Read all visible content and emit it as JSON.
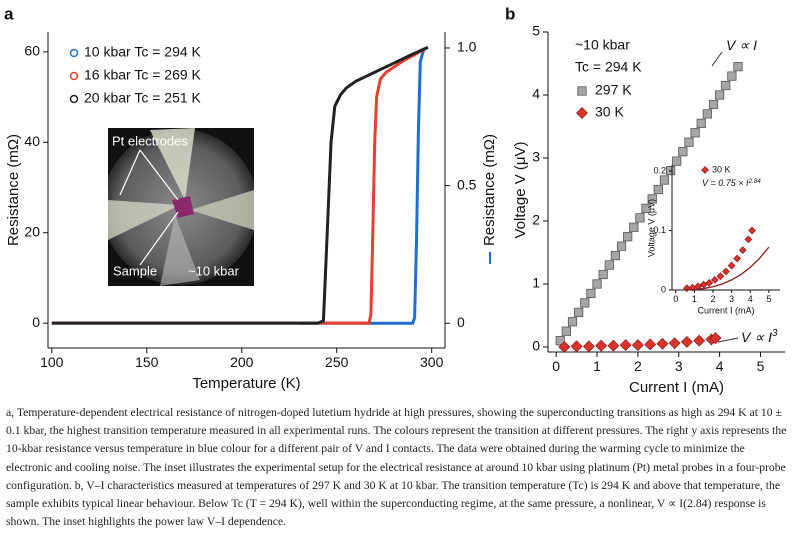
{
  "chart_data": [
    {
      "type": "line",
      "panel": "a",
      "xlabel": "Temperature (K)",
      "ylabel": "Resistance (mΩ)",
      "y2label": "Resistance (mΩ)",
      "xlim": [
        98,
        307
      ],
      "xticks": [
        100,
        150,
        200,
        250,
        300
      ],
      "ylim": [
        -5.5,
        64.4
      ],
      "yticks": [
        0,
        20,
        40,
        60
      ],
      "y2lim": [
        -0.09,
        1.058
      ],
      "y2ticks": [
        0,
        0.5,
        {
          "value": 1.0,
          "label": "1.0"
        }
      ],
      "annotations": [
        "Pt electrodes",
        "Sample",
        "~10 kbar"
      ],
      "series": [
        {
          "name": "10 kbar Tc = 294 K",
          "color": "#1f6fd1",
          "axis": "y2",
          "x": [
            230,
            290,
            291,
            292,
            293,
            294,
            296
          ],
          "values": [
            0,
            0,
            0.02,
            0.3,
            0.7,
            0.95,
            1.0
          ]
        },
        {
          "name": "16 kbar Tc = 269 K",
          "color": "#e8402f",
          "x": [
            100,
            267,
            268,
            269,
            270,
            271,
            273,
            276,
            285,
            298
          ],
          "values": [
            0,
            0,
            2,
            20,
            40,
            50,
            54,
            55.5,
            58,
            61
          ]
        },
        {
          "name": "20 kbar Tc = 251 K",
          "color": "#222222",
          "x": [
            100,
            240,
            243,
            245,
            247,
            249,
            252,
            255,
            260,
            270,
            280,
            290,
            298
          ],
          "values": [
            0,
            0,
            0.5,
            20,
            40,
            48,
            50.5,
            52,
            53.5,
            55.5,
            57.5,
            59.5,
            61
          ]
        }
      ]
    },
    {
      "type": "scatter",
      "panel": "b",
      "xlabel": "Current I (mA)",
      "ylabel": "Voltage V (μV)",
      "legend_title": [
        "~10 kbar",
        "Tc = 294 K"
      ],
      "annotations": [
        {
          "text": "V ∝ I"
        },
        {
          "text": "V ∝ I",
          "sup": "3"
        }
      ],
      "xlim": [
        -0.2,
        5.6
      ],
      "xticks": [
        0,
        1,
        2,
        3,
        4,
        5
      ],
      "ylim": [
        -0.08,
        5.0
      ],
      "yticks": [
        0,
        1,
        2,
        3,
        4,
        5
      ],
      "series": [
        {
          "name": "297 K",
          "color": "#a6a6a6",
          "marker": "square",
          "x": [
            0.1,
            0.25,
            0.4,
            0.55,
            0.7,
            0.85,
            1.0,
            1.15,
            1.3,
            1.45,
            1.6,
            1.75,
            1.9,
            2.05,
            2.2,
            2.35,
            2.5,
            2.65,
            2.8,
            2.95,
            3.1,
            3.25,
            3.4,
            3.55,
            3.7,
            3.85,
            4.0,
            4.15,
            4.3,
            4.45
          ],
          "values": [
            0.1,
            0.25,
            0.4,
            0.55,
            0.7,
            0.85,
            1.0,
            1.15,
            1.3,
            1.45,
            1.6,
            1.75,
            1.9,
            2.05,
            2.2,
            2.35,
            2.5,
            2.65,
            2.8,
            2.95,
            3.1,
            3.25,
            3.4,
            3.55,
            3.7,
            3.85,
            4.0,
            4.15,
            4.3,
            4.45
          ]
        },
        {
          "name": "30 K",
          "color": "#d9342b",
          "marker": "diamond",
          "x": [
            0.2,
            0.5,
            0.8,
            1.1,
            1.4,
            1.7,
            2.0,
            2.3,
            2.6,
            2.9,
            3.2,
            3.5,
            3.8,
            3.9
          ],
          "values": [
            0.0,
            0.01,
            0.01,
            0.02,
            0.02,
            0.03,
            0.03,
            0.04,
            0.05,
            0.06,
            0.08,
            0.1,
            0.12,
            0.14
          ]
        }
      ]
    },
    {
      "type": "scatter",
      "panel": "b-inset",
      "xlabel": "Current I (mA)",
      "ylabel": "Voltage V (μV)",
      "annotations": [
        {
          "text": "V = 0.75 × I",
          "sup": "2.84"
        }
      ],
      "xlim": [
        -0.2,
        5.6
      ],
      "xticks": [
        0,
        1,
        2,
        3,
        4,
        5
      ],
      "ylim": [
        0,
        0.21
      ],
      "yticks": [
        0,
        0.1,
        0.2
      ],
      "series": [
        {
          "name": "30 K",
          "color": "#d9342b",
          "marker": "diamond",
          "x": [
            0.6,
            0.9,
            1.2,
            1.5,
            1.8,
            2.1,
            2.4,
            2.7,
            3.0,
            3.3,
            3.6,
            3.9,
            4.1
          ],
          "values": [
            0.003,
            0.004,
            0.006,
            0.009,
            0.012,
            0.017,
            0.023,
            0.031,
            0.041,
            0.053,
            0.067,
            0.085,
            0.1
          ]
        },
        {
          "color": "#8b1a1a",
          "marker": "line",
          "x": [
            0.5,
            1,
            1.5,
            2,
            2.5,
            3,
            3.5,
            4,
            4.5,
            5
          ],
          "values": [
            0.0001,
            0.0008,
            0.0024,
            0.0054,
            0.01,
            0.017,
            0.026,
            0.038,
            0.053,
            0.072
          ]
        }
      ]
    }
  ],
  "caption": "a, Temperature-dependent electrical resistance of nitrogen-doped lutetium hydride at high pressures, showing the superconducting transitions as high as 294 K at 10 ± 0.1 kbar, the highest transition temperature measured in all experimental runs. The colours represent the transition at different pressures. The right y axis represents the 10-kbar resistance versus temperature in blue colour for a different pair of V and I contacts. The data were obtained during the warming cycle to minimize the electronic and cooling noise. The inset illustrates the experimental setup for the electrical resistance at around 10 kbar using platinum (Pt) metal probes in a four-probe configuration. b, V–I characteristics measured at temperatures of 297 K and 30 K at 10 kbar. The transition temperature (Tc) is 294 K and above that temperature, the sample exhibits typical linear behaviour. Below Tc (T = 294 K), well within the superconducting regime, at the same pressure, a nonlinear, V ∝ I(2.84) response is shown. The inset highlights the power law V–I dependence."
}
